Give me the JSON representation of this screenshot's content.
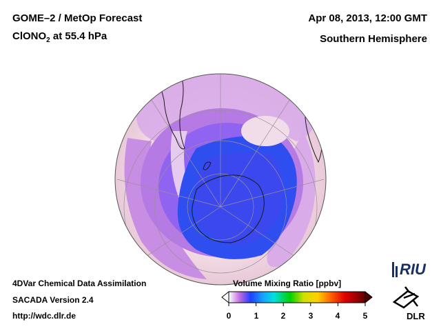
{
  "header": {
    "title_line1": "GOME–2 / MetOp Forecast",
    "species": "ClONO",
    "species_sub": "2",
    "level": " at 55.4 hPa",
    "date": "Apr 08, 2013, 12:00 GMT",
    "region": "Southern Hemisphere"
  },
  "footer": {
    "line1": "4DVar Chemical Data Assimilation",
    "line2": "SACADA Version 2.4",
    "line3": "http://wdc.dlr.de"
  },
  "colorbar": {
    "title": "Volume Mixing Ratio [ppbv]",
    "ticks": [
      "0",
      "1",
      "2",
      "3",
      "4",
      "5"
    ],
    "range": [
      0,
      5
    ],
    "colors": [
      "#ffffff",
      "#c06be0",
      "#2040ff",
      "#18a0ff",
      "#00e0e0",
      "#00d000",
      "#d0e000",
      "#ffd000",
      "#ff6000",
      "#e00000",
      "#a00000",
      "#600000"
    ]
  },
  "map": {
    "projection": "orthographic, centered on South Pole",
    "field_colors": {
      "low": "#2e4ef0",
      "mid": "#b98ae6",
      "high": "#f3dde6"
    }
  },
  "logos": {
    "riu": "RIU",
    "dlr": "DLR"
  }
}
